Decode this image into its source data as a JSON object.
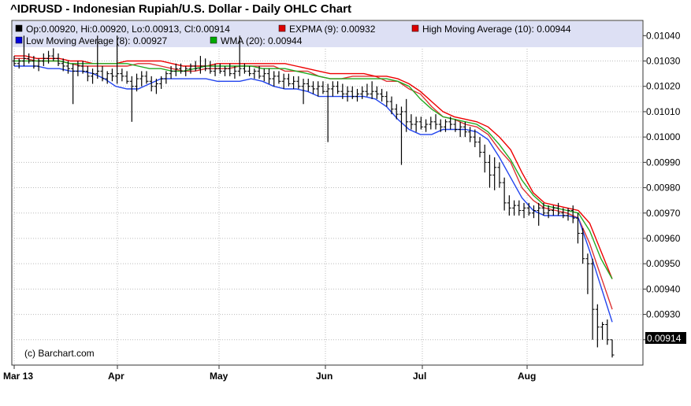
{
  "chart_data": {
    "type": "line",
    "title": "^IDRUSD - Indonesian Rupiah/U.S. Dollar - Daily OHLC Chart",
    "credit": "(c) Barchart.com",
    "ylim": [
      0.0091,
      0.01046
    ],
    "yticks": [
      {
        "value": 0.0104,
        "label": "0.01040"
      },
      {
        "value": 0.0103,
        "label": "0.01030"
      },
      {
        "value": 0.0102,
        "label": "0.01020"
      },
      {
        "value": 0.0101,
        "label": "0.01010"
      },
      {
        "value": 0.01,
        "label": "0.01000"
      },
      {
        "value": 0.0099,
        "label": "0.00990"
      },
      {
        "value": 0.0098,
        "label": "0.00980"
      },
      {
        "value": 0.0097,
        "label": "0.00970"
      },
      {
        "value": 0.0096,
        "label": "0.00960"
      },
      {
        "value": 0.0095,
        "label": "0.00950"
      },
      {
        "value": 0.0094,
        "label": "0.00940"
      },
      {
        "value": 0.0093,
        "label": "0.00930"
      },
      {
        "value": 0.0092,
        "label": "0.00920"
      }
    ],
    "xticks": [
      "Mar 13",
      "Apr",
      "May",
      "Jun",
      "Jul",
      "Aug"
    ],
    "last_value": "0.00914",
    "grid": true,
    "legend": [
      {
        "color": "#000000",
        "text": "Op:0.00920, Hi:0.00920, Lo:0.00913, Cl:0.00914"
      },
      {
        "color": "#dd0000",
        "text": "EXPMA (9): 0.00932"
      },
      {
        "color": "#dd0000",
        "text": "High Moving Average (10): 0.00944"
      },
      {
        "color": "#0000dd",
        "text": "Low Moving Average (8): 0.00927"
      },
      {
        "color": "#00aa00",
        "text": "WMA (20): 0.00944"
      }
    ],
    "ohlc": [
      [
        0.0103,
        0.01032,
        0.01028,
        0.01029
      ],
      [
        0.01029,
        0.01031,
        0.01027,
        0.0103
      ],
      [
        0.0103,
        0.0104,
        0.01028,
        0.01031
      ],
      [
        0.01031,
        0.01033,
        0.01029,
        0.0103
      ],
      [
        0.0103,
        0.01032,
        0.01027,
        0.01028
      ],
      [
        0.01028,
        0.01031,
        0.01026,
        0.0103
      ],
      [
        0.0103,
        0.01033,
        0.01028,
        0.01031
      ],
      [
        0.01031,
        0.01034,
        0.01029,
        0.01032
      ],
      [
        0.01032,
        0.01035,
        0.0103,
        0.01031
      ],
      [
        0.01031,
        0.01033,
        0.01028,
        0.01029
      ],
      [
        0.01029,
        0.01031,
        0.01026,
        0.01028
      ],
      [
        0.01028,
        0.0103,
        0.01025,
        0.01027
      ],
      [
        0.01027,
        0.01029,
        0.01013,
        0.01026
      ],
      [
        0.01026,
        0.0103,
        0.01024,
        0.01028
      ],
      [
        0.01028,
        0.0103,
        0.01025,
        0.01026
      ],
      [
        0.01026,
        0.01028,
        0.01022,
        0.01024
      ],
      [
        0.01024,
        0.01027,
        0.01021,
        0.01025
      ],
      [
        0.01025,
        0.0104,
        0.01023,
        0.01026
      ],
      [
        0.01026,
        0.01028,
        0.01022,
        0.01023
      ],
      [
        0.01023,
        0.01026,
        0.01021,
        0.01025
      ],
      [
        0.01025,
        0.01027,
        0.01022,
        0.01024
      ],
      [
        0.01024,
        0.0104,
        0.01021,
        0.01025
      ],
      [
        0.01025,
        0.01027,
        0.01022,
        0.01024
      ],
      [
        0.01024,
        0.01026,
        0.01021,
        0.01022
      ],
      [
        0.01022,
        0.01024,
        0.01006,
        0.0102
      ],
      [
        0.0102,
        0.01025,
        0.01018,
        0.01023
      ],
      [
        0.01023,
        0.01026,
        0.0102,
        0.01024
      ],
      [
        0.01024,
        0.01026,
        0.01021,
        0.01022
      ],
      [
        0.01022,
        0.01024,
        0.01018,
        0.0102
      ],
      [
        0.0102,
        0.01023,
        0.01017,
        0.01021
      ],
      [
        0.01021,
        0.01024,
        0.01019,
        0.01023
      ],
      [
        0.01023,
        0.01026,
        0.01021,
        0.01025
      ],
      [
        0.01025,
        0.01028,
        0.01023,
        0.01026
      ],
      [
        0.01026,
        0.01029,
        0.01024,
        0.01027
      ],
      [
        0.01027,
        0.01029,
        0.01025,
        0.01026
      ],
      [
        0.01026,
        0.01028,
        0.01024,
        0.01027
      ],
      [
        0.01027,
        0.01029,
        0.01025,
        0.01028
      ],
      [
        0.01028,
        0.0103,
        0.01026,
        0.01027
      ],
      [
        0.01027,
        0.01032,
        0.01025,
        0.01028
      ],
      [
        0.01028,
        0.01031,
        0.01026,
        0.01027
      ],
      [
        0.01027,
        0.0103,
        0.01025,
        0.01026
      ],
      [
        0.01026,
        0.01029,
        0.01024,
        0.01027
      ],
      [
        0.01027,
        0.01029,
        0.01025,
        0.01026
      ],
      [
        0.01026,
        0.01028,
        0.01024,
        0.01027
      ],
      [
        0.01027,
        0.01029,
        0.01024,
        0.01025
      ],
      [
        0.01025,
        0.01028,
        0.01023,
        0.01026
      ],
      [
        0.01026,
        0.0104,
        0.01024,
        0.01027
      ],
      [
        0.01027,
        0.01029,
        0.01025,
        0.01026
      ],
      [
        0.01026,
        0.01028,
        0.01024,
        0.01025
      ],
      [
        0.01025,
        0.01027,
        0.01023,
        0.01026
      ],
      [
        0.01026,
        0.01028,
        0.01023,
        0.01024
      ],
      [
        0.01024,
        0.01027,
        0.01022,
        0.01025
      ],
      [
        0.01025,
        0.01027,
        0.01021,
        0.01023
      ],
      [
        0.01023,
        0.01026,
        0.0102,
        0.01024
      ],
      [
        0.01024,
        0.01026,
        0.01021,
        0.01022
      ],
      [
        0.01022,
        0.01025,
        0.01019,
        0.01023
      ],
      [
        0.01023,
        0.01025,
        0.0102,
        0.01021
      ],
      [
        0.01021,
        0.01024,
        0.01019,
        0.01022
      ],
      [
        0.01022,
        0.01024,
        0.01019,
        0.0102
      ],
      [
        0.0102,
        0.01023,
        0.01013,
        0.01021
      ],
      [
        0.01021,
        0.01023,
        0.01018,
        0.0102
      ],
      [
        0.0102,
        0.01022,
        0.01017,
        0.01019
      ],
      [
        0.01019,
        0.01022,
        0.01016,
        0.0102
      ],
      [
        0.0102,
        0.01022,
        0.01017,
        0.01018
      ],
      [
        0.01018,
        0.01021,
        0.00998,
        0.01019
      ],
      [
        0.01019,
        0.01022,
        0.01016,
        0.0102
      ],
      [
        0.0102,
        0.01022,
        0.01017,
        0.01018
      ],
      [
        0.01018,
        0.01021,
        0.01015,
        0.01017
      ],
      [
        0.01017,
        0.0102,
        0.01014,
        0.01018
      ],
      [
        0.01018,
        0.0102,
        0.01015,
        0.01016
      ],
      [
        0.01016,
        0.01019,
        0.01014,
        0.01017
      ],
      [
        0.01017,
        0.0102,
        0.01015,
        0.01018
      ],
      [
        0.01018,
        0.01021,
        0.01016,
        0.01017
      ],
      [
        0.01017,
        0.01022,
        0.01015,
        0.01018
      ],
      [
        0.01018,
        0.0102,
        0.01015,
        0.01017
      ],
      [
        0.01017,
        0.01019,
        0.01014,
        0.01016
      ],
      [
        0.01016,
        0.01018,
        0.01012,
        0.01014
      ],
      [
        0.01014,
        0.01016,
        0.01009,
        0.01011
      ],
      [
        0.01011,
        0.01013,
        0.01007,
        0.01009
      ],
      [
        0.01009,
        0.01012,
        0.00989,
        0.0101
      ],
      [
        0.0101,
        0.01015,
        0.01002,
        0.01006
      ],
      [
        0.01006,
        0.01009,
        0.01003,
        0.01005
      ],
      [
        0.01005,
        0.01008,
        0.01002,
        0.01006
      ],
      [
        0.01006,
        0.01008,
        0.01003,
        0.01004
      ],
      [
        0.01004,
        0.01007,
        0.01002,
        0.01005
      ],
      [
        0.01005,
        0.01008,
        0.01003,
        0.01006
      ],
      [
        0.01006,
        0.01009,
        0.01003,
        0.01005
      ],
      [
        0.01005,
        0.01007,
        0.01002,
        0.01004
      ],
      [
        0.01004,
        0.01007,
        0.01002,
        0.01006
      ],
      [
        0.01006,
        0.01008,
        0.01003,
        0.01005
      ],
      [
        0.01005,
        0.01007,
        0.01002,
        0.01003
      ],
      [
        0.01003,
        0.01006,
        0.01,
        0.01004
      ],
      [
        0.01004,
        0.01006,
        0.01,
        0.01002
      ],
      [
        0.01002,
        0.01004,
        0.00998,
        0.01
      ],
      [
        0.01,
        0.01003,
        0.00996,
        0.00998
      ],
      [
        0.00998,
        0.01,
        0.00992,
        0.00994
      ],
      [
        0.00994,
        0.00997,
        0.00986,
        0.0099
      ],
      [
        0.0099,
        0.00993,
        0.0098,
        0.00985
      ],
      [
        0.00985,
        0.00992,
        0.00979,
        0.00988
      ],
      [
        0.00988,
        0.0099,
        0.0098,
        0.00982
      ],
      [
        0.00982,
        0.00984,
        0.00971,
        0.00974
      ],
      [
        0.00974,
        0.00977,
        0.00969,
        0.00972
      ],
      [
        0.00972,
        0.00975,
        0.00969,
        0.00973
      ],
      [
        0.00973,
        0.00975,
        0.00969,
        0.00971
      ],
      [
        0.00971,
        0.00974,
        0.00968,
        0.00972
      ],
      [
        0.00972,
        0.00974,
        0.00969,
        0.0097
      ],
      [
        0.0097,
        0.00973,
        0.00968,
        0.00971
      ],
      [
        0.00971,
        0.00974,
        0.00965,
        0.00972
      ],
      [
        0.00972,
        0.00974,
        0.00969,
        0.0097
      ],
      [
        0.0097,
        0.00973,
        0.00968,
        0.00971
      ],
      [
        0.00971,
        0.00973,
        0.00969,
        0.00972
      ],
      [
        0.00972,
        0.00974,
        0.00969,
        0.0097
      ],
      [
        0.0097,
        0.00972,
        0.00968,
        0.00969
      ],
      [
        0.00969,
        0.00972,
        0.00967,
        0.00971
      ],
      [
        0.00971,
        0.00973,
        0.00966,
        0.00968
      ],
      [
        0.00968,
        0.0097,
        0.00958,
        0.00962
      ],
      [
        0.00962,
        0.00964,
        0.0095,
        0.00952
      ],
      [
        0.00952,
        0.00954,
        0.00938,
        0.0095
      ],
      [
        0.0095,
        0.00952,
        0.0092,
        0.00932
      ],
      [
        0.00932,
        0.00934,
        0.00917,
        0.00925
      ],
      [
        0.00925,
        0.00927,
        0.0092,
        0.00926
      ],
      [
        0.00926,
        0.00928,
        0.00918,
        0.0092
      ],
      [
        0.0092,
        0.0092,
        0.00913,
        0.00914
      ]
    ],
    "series": [
      {
        "name": "EXPMA (9)",
        "color": "#dd3333",
        "values": [
          0.01031,
          0.01031,
          0.0103,
          0.0103,
          0.0103,
          0.01029,
          0.01028,
          0.01028,
          0.01028,
          0.01028,
          0.01028,
          0.01029,
          0.01029,
          0.01028,
          0.01027,
          0.01026,
          0.01026,
          0.01027,
          0.01027,
          0.01027,
          0.01028,
          0.01028,
          0.01028,
          0.01028,
          0.01026,
          0.01026,
          0.01026,
          0.01024,
          0.01023,
          0.01023,
          0.01024,
          0.01024,
          0.01024,
          0.01022,
          0.01022,
          0.01019,
          0.01017,
          0.01012,
          0.01008,
          0.01007,
          0.01005,
          0.01004,
          0.01001,
          0.00995,
          0.0099,
          0.0098,
          0.00975,
          0.00972,
          0.00971,
          0.0097,
          0.00968,
          0.00958,
          0.00945,
          0.00932
        ]
      },
      {
        "name": "High Moving Average (10)",
        "color": "#ee0000",
        "values": [
          0.01032,
          0.01032,
          0.01031,
          0.01031,
          0.01031,
          0.0103,
          0.0103,
          0.01029,
          0.01029,
          0.01029,
          0.0103,
          0.0103,
          0.0103,
          0.0103,
          0.01029,
          0.01028,
          0.01028,
          0.01028,
          0.01029,
          0.01029,
          0.01029,
          0.01029,
          0.01029,
          0.01029,
          0.01029,
          0.01028,
          0.01027,
          0.01026,
          0.01025,
          0.01025,
          0.01025,
          0.01025,
          0.01024,
          0.01024,
          0.01023,
          0.01021,
          0.01018,
          0.01014,
          0.0101,
          0.01008,
          0.01007,
          0.01006,
          0.01004,
          0.01,
          0.00995,
          0.00986,
          0.00978,
          0.00974,
          0.00973,
          0.00972,
          0.00971,
          0.00966,
          0.00955,
          0.00944
        ]
      },
      {
        "name": "Low Moving Average (8)",
        "color": "#2244ee",
        "values": [
          0.01028,
          0.01028,
          0.01028,
          0.01027,
          0.01027,
          0.01026,
          0.01026,
          0.01025,
          0.01023,
          0.0102,
          0.01019,
          0.01019,
          0.01021,
          0.01023,
          0.01023,
          0.01023,
          0.01023,
          0.01023,
          0.01022,
          0.01022,
          0.01022,
          0.01023,
          0.01022,
          0.0102,
          0.01019,
          0.01019,
          0.01018,
          0.01016,
          0.01016,
          0.01016,
          0.01016,
          0.01016,
          0.01015,
          0.01012,
          0.01007,
          0.01003,
          0.01001,
          0.01001,
          0.01003,
          0.01003,
          0.01003,
          0.01002,
          0.00999,
          0.00992,
          0.00984,
          0.00976,
          0.00971,
          0.00969,
          0.00969,
          0.00969,
          0.00968,
          0.00955,
          0.00941,
          0.00927
        ]
      },
      {
        "name": "WMA (20)",
        "color": "#22aa22",
        "values": [
          0.0103,
          0.0103,
          0.0103,
          0.0103,
          0.0103,
          0.01029,
          0.01029,
          0.01029,
          0.01029,
          0.01029,
          0.01029,
          0.01028,
          0.01027,
          0.01027,
          0.01026,
          0.01026,
          0.01027,
          0.01028,
          0.01028,
          0.01028,
          0.01028,
          0.01028,
          0.01027,
          0.01027,
          0.01027,
          0.01026,
          0.01025,
          0.01024,
          0.01023,
          0.01023,
          0.01023,
          0.01023,
          0.01023,
          0.01023,
          0.01022,
          0.0102,
          0.01015,
          0.01011,
          0.01008,
          0.01007,
          0.01006,
          0.01005,
          0.01002,
          0.00997,
          0.00991,
          0.00983,
          0.00977,
          0.00973,
          0.00972,
          0.00971,
          0.0097,
          0.00963,
          0.00952,
          0.00944
        ]
      }
    ]
  }
}
